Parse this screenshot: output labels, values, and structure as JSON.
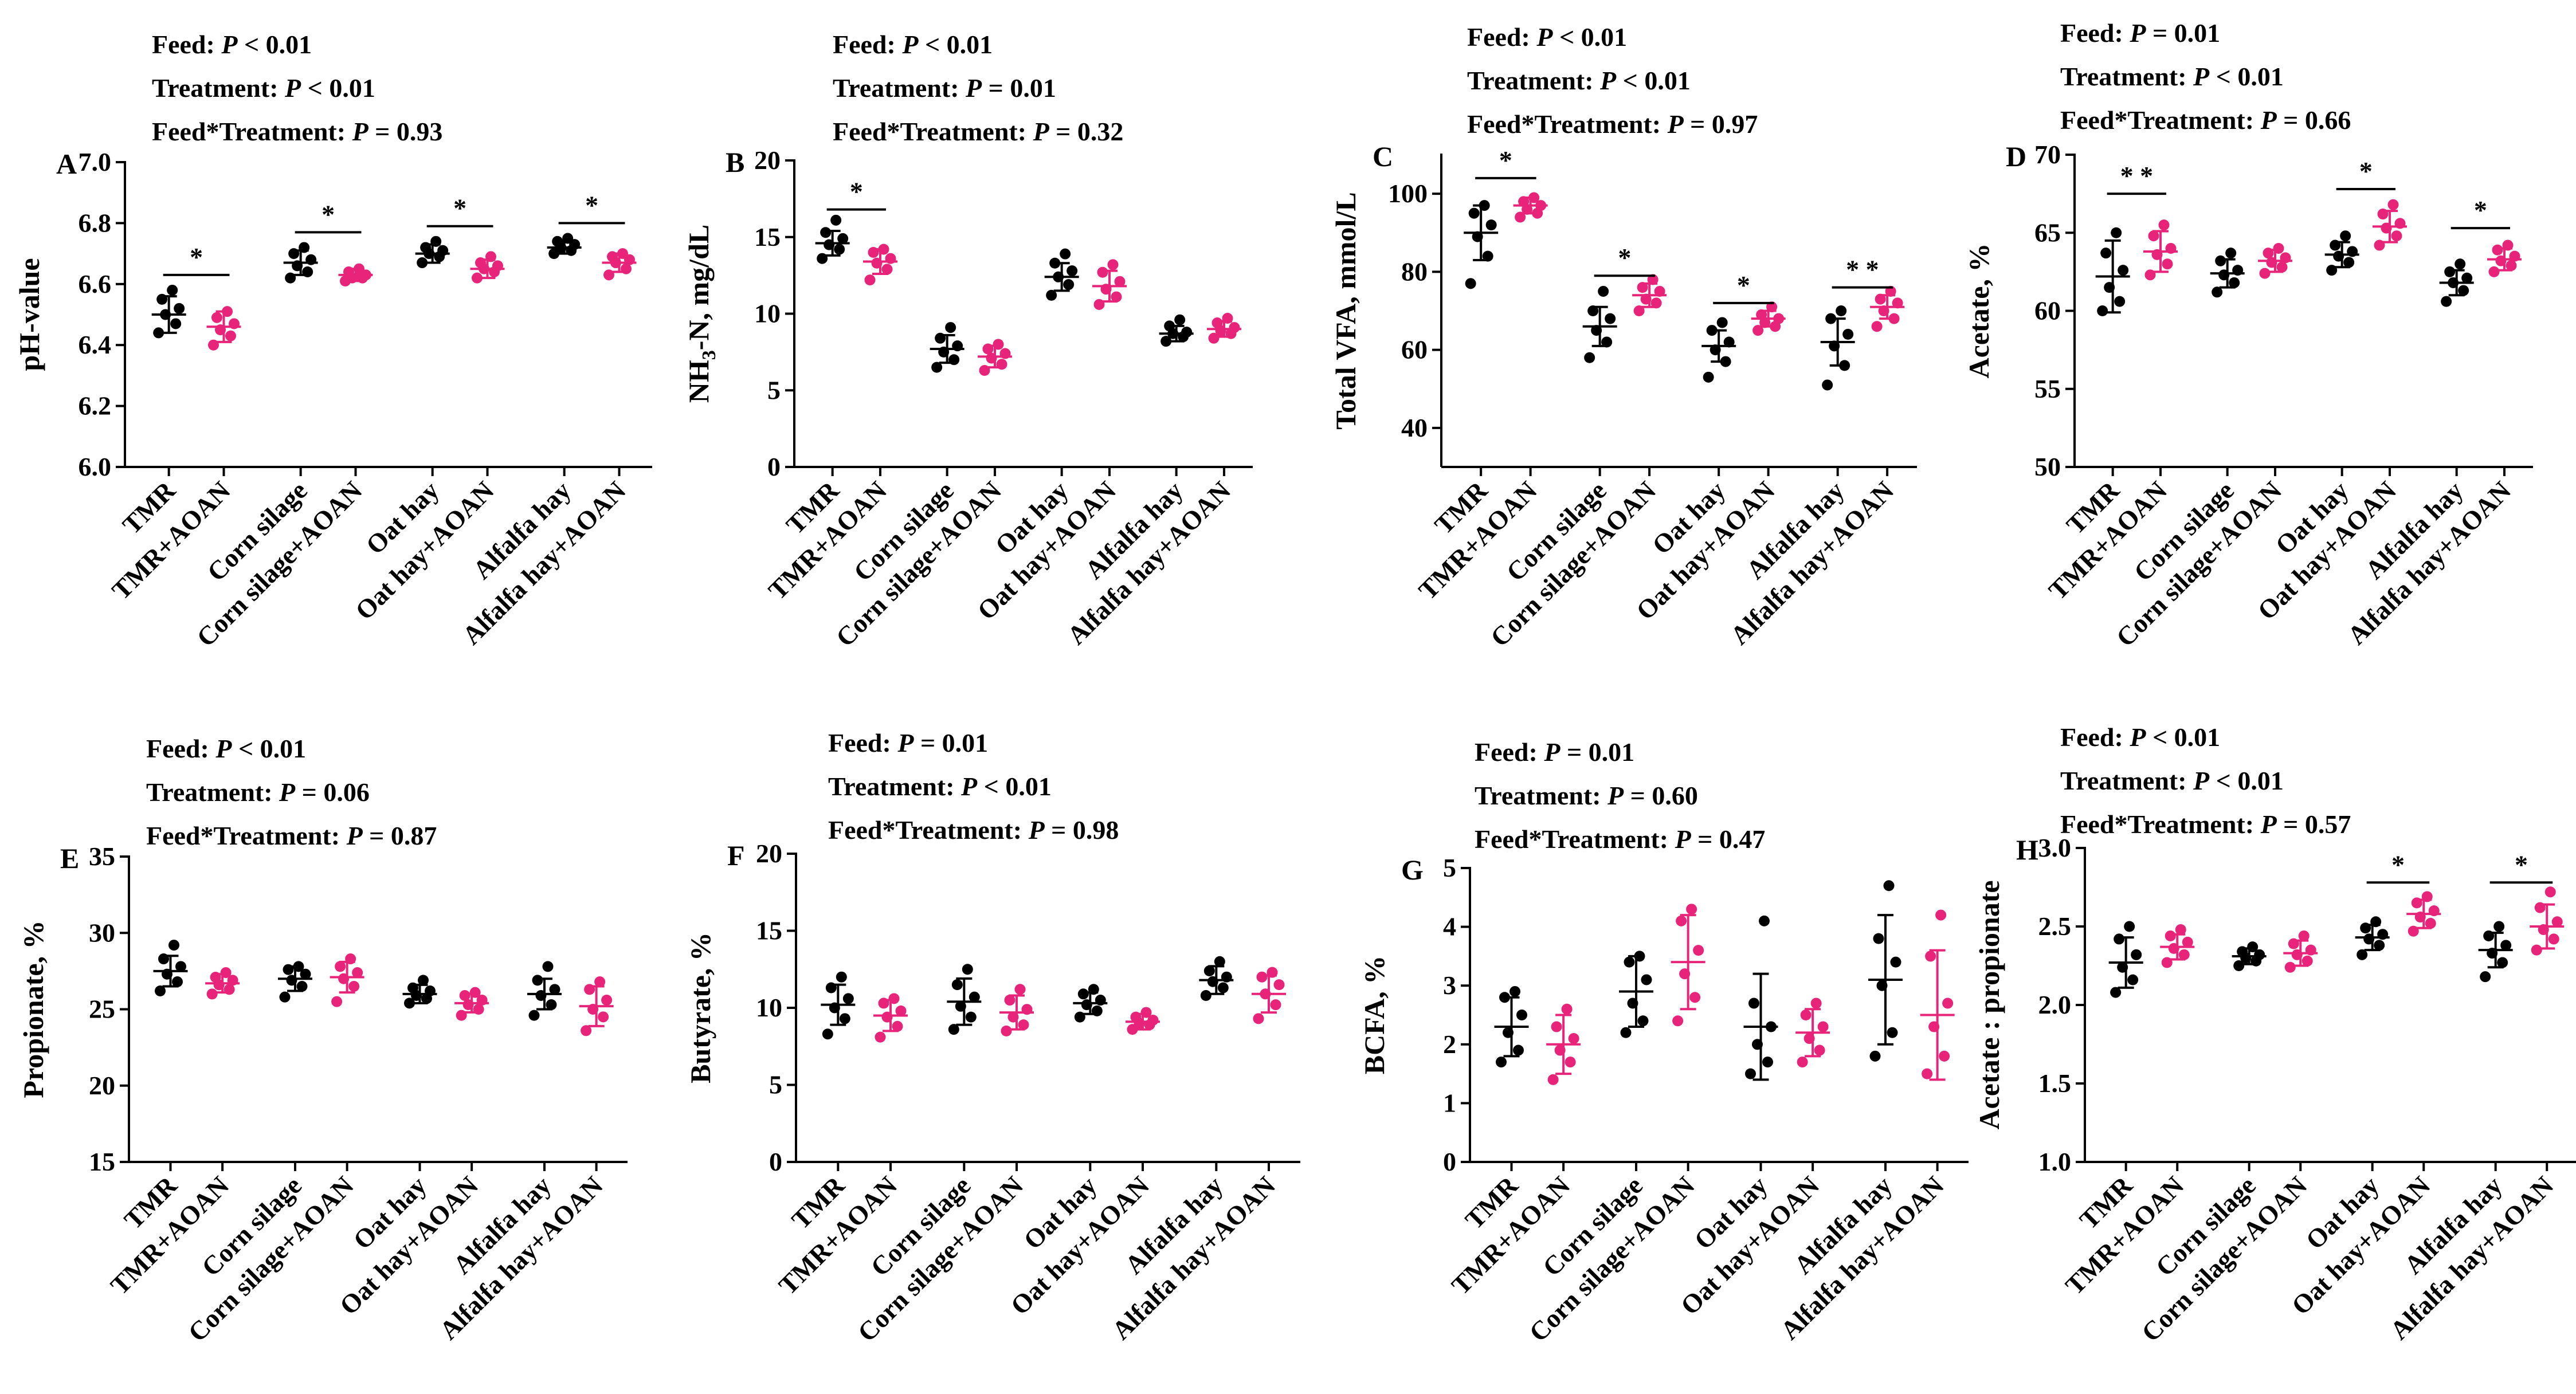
{
  "figure": {
    "categories": [
      "TMR",
      "TMR+AOAN",
      "Corn silage",
      "Corn silage+AOAN",
      "Oat hay",
      "Oat hay+AOAN",
      "Alfalfa hay",
      "Alfalfa hay+AOAN"
    ],
    "colors": {
      "control": "#000000",
      "aoan": "#e8247a"
    }
  },
  "chart_data": [
    {
      "panel": "A",
      "type": "scatter",
      "ylabel": "pH-value",
      "ylim": [
        6.0,
        7.0
      ],
      "yticks": [
        6.0,
        6.2,
        6.4,
        6.6,
        6.8,
        7.0
      ],
      "tick_decimals": 1,
      "stats": [
        {
          "label": "Feed: ",
          "p": "P",
          "rest": " < 0.01"
        },
        {
          "label": "Treatment: ",
          "p": "P",
          "rest": " < 0.01"
        },
        {
          "label": "Feed*Treatment: ",
          "p": "P",
          "rest": " = 0.93"
        }
      ],
      "groups": [
        {
          "mean": 6.5,
          "sd": 0.06,
          "points": [
            6.44,
            6.47,
            6.5,
            6.52,
            6.55,
            6.58
          ]
        },
        {
          "mean": 6.46,
          "sd": 0.05,
          "points": [
            6.4,
            6.43,
            6.45,
            6.47,
            6.49,
            6.51
          ]
        },
        {
          "mean": 6.67,
          "sd": 0.04,
          "points": [
            6.62,
            6.64,
            6.66,
            6.68,
            6.7,
            6.72
          ]
        },
        {
          "mean": 6.63,
          "sd": 0.02,
          "points": [
            6.61,
            6.62,
            6.62,
            6.63,
            6.64,
            6.65
          ]
        },
        {
          "mean": 6.7,
          "sd": 0.03,
          "points": [
            6.67,
            6.69,
            6.7,
            6.71,
            6.72,
            6.74
          ]
        },
        {
          "mean": 6.65,
          "sd": 0.03,
          "points": [
            6.62,
            6.64,
            6.65,
            6.66,
            6.67,
            6.69
          ]
        },
        {
          "mean": 6.72,
          "sd": 0.02,
          "points": [
            6.7,
            6.71,
            6.72,
            6.73,
            6.74,
            6.75
          ]
        },
        {
          "mean": 6.67,
          "sd": 0.03,
          "points": [
            6.63,
            6.65,
            6.67,
            6.68,
            6.69,
            6.7
          ]
        }
      ],
      "sig": [
        {
          "pair": 0,
          "label": "*",
          "y": 6.63
        },
        {
          "pair": 1,
          "label": "*",
          "y": 6.77
        },
        {
          "pair": 2,
          "label": "*",
          "y": 6.79
        },
        {
          "pair": 3,
          "label": "*",
          "y": 6.8
        }
      ]
    },
    {
      "panel": "B",
      "type": "scatter",
      "ylabel": "NH3-N, mg/dL",
      "ylim": [
        0,
        20
      ],
      "yticks": [
        0,
        5,
        10,
        15,
        20
      ],
      "tick_decimals": 0,
      "stats": [
        {
          "label": "Feed: ",
          "p": "P",
          "rest": " < 0.01"
        },
        {
          "label": "Treatment: ",
          "p": "P",
          "rest": " = 0.01"
        },
        {
          "label": "Feed*Treatment: ",
          "p": "P",
          "rest": " = 0.32"
        }
      ],
      "groups": [
        {
          "mean": 14.6,
          "sd": 0.8,
          "points": [
            13.6,
            14.2,
            14.5,
            14.9,
            15.3,
            16.1
          ]
        },
        {
          "mean": 13.4,
          "sd": 0.8,
          "points": [
            12.2,
            12.9,
            13.3,
            13.6,
            14.0,
            14.2
          ]
        },
        {
          "mean": 7.7,
          "sd": 0.9,
          "points": [
            6.5,
            7.0,
            7.5,
            7.9,
            8.4,
            9.1
          ]
        },
        {
          "mean": 7.2,
          "sd": 0.7,
          "points": [
            6.3,
            6.7,
            7.1,
            7.4,
            7.7,
            8.0
          ]
        },
        {
          "mean": 12.4,
          "sd": 0.9,
          "points": [
            11.2,
            11.9,
            12.4,
            12.8,
            13.3,
            13.9
          ]
        },
        {
          "mean": 11.8,
          "sd": 1.0,
          "points": [
            10.6,
            11.1,
            11.6,
            12.1,
            12.7,
            13.2
          ]
        },
        {
          "mean": 8.7,
          "sd": 0.5,
          "points": [
            8.2,
            8.5,
            8.7,
            8.8,
            9.2,
            9.6
          ]
        },
        {
          "mean": 9.0,
          "sd": 0.5,
          "points": [
            8.4,
            8.7,
            8.9,
            9.1,
            9.4,
            9.7
          ]
        }
      ],
      "sig": [
        {
          "pair": 0,
          "label": "*",
          "y": 16.8
        }
      ]
    },
    {
      "panel": "C",
      "type": "scatter",
      "ylabel": "Total VFA, mmol/L",
      "ylim": [
        30,
        110
      ],
      "yticks": [
        40,
        60,
        80,
        100
      ],
      "tick_decimals": 0,
      "stats": [
        {
          "label": "Feed: ",
          "p": "P",
          "rest": " < 0.01"
        },
        {
          "label": "Treatment: ",
          "p": "P",
          "rest": " < 0.01"
        },
        {
          "label": "Feed*Treatment: ",
          "p": "P",
          "rest": " = 0.97"
        }
      ],
      "groups": [
        {
          "mean": 90,
          "sd": 7,
          "points": [
            77,
            84,
            89,
            92,
            95,
            97
          ]
        },
        {
          "mean": 97,
          "sd": 2,
          "points": [
            94,
            95,
            96,
            97,
            98,
            99
          ]
        },
        {
          "mean": 66,
          "sd": 5,
          "points": [
            58,
            62,
            65,
            68,
            70,
            75
          ]
        },
        {
          "mean": 74,
          "sd": 3,
          "points": [
            70,
            72,
            73,
            75,
            76,
            78
          ]
        },
        {
          "mean": 61,
          "sd": 4,
          "points": [
            53,
            57,
            60,
            62,
            65,
            67
          ]
        },
        {
          "mean": 68,
          "sd": 2,
          "points": [
            65,
            66,
            67,
            68,
            69,
            71
          ]
        },
        {
          "mean": 62,
          "sd": 6,
          "points": [
            51,
            56,
            61,
            64,
            68,
            70
          ]
        },
        {
          "mean": 71,
          "sd": 3,
          "points": [
            66,
            68,
            70,
            72,
            73,
            75
          ]
        }
      ],
      "sig": [
        {
          "pair": 0,
          "label": "*",
          "y": 104
        },
        {
          "pair": 1,
          "label": "*",
          "y": 79
        },
        {
          "pair": 2,
          "label": "*",
          "y": 72
        },
        {
          "pair": 3,
          "label": "* *",
          "y": 76
        }
      ]
    },
    {
      "panel": "D",
      "type": "scatter",
      "ylabel": "Acetate, %",
      "ylim": [
        50,
        70
      ],
      "yticks": [
        50,
        55,
        60,
        65,
        70
      ],
      "tick_decimals": 0,
      "stats": [
        {
          "label": "Feed: ",
          "p": "P",
          "rest": " = 0.01"
        },
        {
          "label": "Treatment: ",
          "p": "P",
          "rest": " < 0.01"
        },
        {
          "label": "Feed*Treatment: ",
          "p": "P",
          "rest": " = 0.66"
        }
      ],
      "groups": [
        {
          "mean": 62.2,
          "sd": 2.3,
          "points": [
            60.0,
            60.6,
            61.5,
            62.6,
            63.7,
            65.0
          ]
        },
        {
          "mean": 63.8,
          "sd": 1.3,
          "points": [
            62.3,
            63.0,
            63.6,
            64.0,
            64.8,
            65.5
          ]
        },
        {
          "mean": 62.4,
          "sd": 0.9,
          "points": [
            61.2,
            61.8,
            62.3,
            62.6,
            63.2,
            63.7
          ]
        },
        {
          "mean": 63.2,
          "sd": 0.7,
          "points": [
            62.4,
            62.8,
            63.1,
            63.4,
            63.7,
            64.0
          ]
        },
        {
          "mean": 63.6,
          "sd": 0.8,
          "points": [
            62.6,
            63.1,
            63.5,
            63.8,
            64.2,
            64.8
          ]
        },
        {
          "mean": 65.4,
          "sd": 1.0,
          "points": [
            64.2,
            64.8,
            65.3,
            65.6,
            66.2,
            66.8
          ]
        },
        {
          "mean": 61.8,
          "sd": 0.8,
          "points": [
            60.6,
            61.3,
            61.8,
            62.1,
            62.5,
            63.0
          ]
        },
        {
          "mean": 63.3,
          "sd": 0.7,
          "points": [
            62.5,
            62.9,
            63.2,
            63.5,
            63.9,
            64.2
          ]
        }
      ],
      "sig": [
        {
          "pair": 0,
          "label": "* *",
          "y": 67.5
        },
        {
          "pair": 2,
          "label": "*",
          "y": 67.8
        },
        {
          "pair": 3,
          "label": "*",
          "y": 65.3
        }
      ]
    },
    {
      "panel": "E",
      "type": "scatter",
      "ylabel": "Propionate, %",
      "ylim": [
        15,
        35
      ],
      "yticks": [
        15,
        20,
        25,
        30,
        35
      ],
      "tick_decimals": 0,
      "stats": [
        {
          "label": "Feed: ",
          "p": "P",
          "rest": " < 0.01"
        },
        {
          "label": "Treatment: ",
          "p": "P",
          "rest": " = 0.06"
        },
        {
          "label": "Feed*Treatment: ",
          "p": "P",
          "rest": " = 0.87"
        }
      ],
      "groups": [
        {
          "mean": 27.5,
          "sd": 1.0,
          "points": [
            26.2,
            26.8,
            27.3,
            27.8,
            28.3,
            29.2
          ]
        },
        {
          "mean": 26.7,
          "sd": 0.6,
          "points": [
            26.0,
            26.3,
            26.6,
            26.9,
            27.1,
            27.4
          ]
        },
        {
          "mean": 27.0,
          "sd": 0.8,
          "points": [
            25.8,
            26.5,
            26.9,
            27.3,
            27.6,
            27.8
          ]
        },
        {
          "mean": 27.1,
          "sd": 1.0,
          "points": [
            25.5,
            26.5,
            27.0,
            27.4,
            27.8,
            28.3
          ]
        },
        {
          "mean": 26.0,
          "sd": 0.6,
          "points": [
            25.4,
            25.7,
            25.9,
            26.2,
            26.4,
            26.9
          ]
        },
        {
          "mean": 25.4,
          "sd": 0.6,
          "points": [
            24.6,
            25.0,
            25.3,
            25.6,
            25.9,
            26.1
          ]
        },
        {
          "mean": 26.0,
          "sd": 1.0,
          "points": [
            24.6,
            25.3,
            25.9,
            26.3,
            26.9,
            27.8
          ]
        },
        {
          "mean": 25.2,
          "sd": 1.3,
          "points": [
            23.6,
            24.5,
            25.0,
            25.6,
            26.3,
            26.8
          ]
        }
      ],
      "sig": []
    },
    {
      "panel": "F",
      "type": "scatter",
      "ylabel": "Butyrate, %",
      "ylim": [
        0,
        20
      ],
      "yticks": [
        0,
        5,
        10,
        15,
        20
      ],
      "tick_decimals": 0,
      "stats": [
        {
          "label": "Feed: ",
          "p": "P",
          "rest": " = 0.01"
        },
        {
          "label": "Treatment: ",
          "p": "P",
          "rest": " < 0.01"
        },
        {
          "label": "Feed*Treatment: ",
          "p": "P",
          "rest": " = 0.98"
        }
      ],
      "groups": [
        {
          "mean": 10.2,
          "sd": 1.3,
          "points": [
            8.3,
            9.3,
            10.0,
            10.6,
            11.3,
            12.0
          ]
        },
        {
          "mean": 9.5,
          "sd": 1.0,
          "points": [
            8.1,
            8.8,
            9.4,
            9.8,
            10.3,
            10.6
          ]
        },
        {
          "mean": 10.4,
          "sd": 1.5,
          "points": [
            8.6,
            9.4,
            10.1,
            10.7,
            11.5,
            12.5
          ]
        },
        {
          "mean": 9.7,
          "sd": 1.1,
          "points": [
            8.5,
            8.9,
            9.4,
            9.9,
            10.5,
            11.2
          ]
        },
        {
          "mean": 10.3,
          "sd": 0.7,
          "points": [
            9.4,
            9.8,
            10.2,
            10.5,
            10.9,
            11.2
          ]
        },
        {
          "mean": 9.1,
          "sd": 0.5,
          "points": [
            8.6,
            8.9,
            9.0,
            9.2,
            9.4,
            9.7
          ]
        },
        {
          "mean": 11.8,
          "sd": 0.9,
          "points": [
            10.8,
            11.3,
            11.7,
            12.0,
            12.4,
            13.0
          ]
        },
        {
          "mean": 10.9,
          "sd": 1.2,
          "points": [
            9.3,
            10.2,
            10.9,
            11.5,
            12.0,
            12.3
          ]
        }
      ],
      "sig": []
    },
    {
      "panel": "G",
      "type": "scatter",
      "ylabel": "BCFA, %",
      "ylim": [
        0,
        5
      ],
      "yticks": [
        0,
        1,
        2,
        3,
        4,
        5
      ],
      "tick_decimals": 0,
      "stats": [
        {
          "label": "Feed: ",
          "p": "P",
          "rest": " = 0.01"
        },
        {
          "label": "Treatment: ",
          "p": "P",
          "rest": " = 0.60"
        },
        {
          "label": "Feed*Treatment: ",
          "p": "P",
          "rest": " = 0.47"
        }
      ],
      "groups": [
        {
          "mean": 2.3,
          "sd": 0.5,
          "points": [
            1.7,
            1.9,
            2.2,
            2.5,
            2.8,
            2.9
          ]
        },
        {
          "mean": 2.0,
          "sd": 0.5,
          "points": [
            1.4,
            1.7,
            1.9,
            2.1,
            2.3,
            2.6
          ]
        },
        {
          "mean": 2.9,
          "sd": 0.6,
          "points": [
            2.2,
            2.4,
            2.7,
            3.1,
            3.4,
            3.5
          ]
        },
        {
          "mean": 3.4,
          "sd": 0.8,
          "points": [
            2.4,
            2.8,
            3.2,
            3.6,
            4.1,
            4.3
          ]
        },
        {
          "mean": 2.3,
          "sd": 0.9,
          "points": [
            1.5,
            1.7,
            2.0,
            2.3,
            2.7,
            4.1
          ]
        },
        {
          "mean": 2.2,
          "sd": 0.4,
          "points": [
            1.7,
            1.9,
            2.1,
            2.3,
            2.5,
            2.7
          ]
        },
        {
          "mean": 3.1,
          "sd": 1.1,
          "points": [
            1.8,
            2.2,
            3.0,
            3.4,
            3.8,
            4.7
          ]
        },
        {
          "mean": 2.5,
          "sd": 1.1,
          "points": [
            1.5,
            1.8,
            2.3,
            2.7,
            3.5,
            4.2
          ]
        }
      ],
      "sig": []
    },
    {
      "panel": "H",
      "type": "scatter",
      "ylabel": "Acetate : propionate",
      "ylim": [
        1.0,
        3.0
      ],
      "yticks": [
        1.0,
        1.5,
        2.0,
        2.5,
        3.0
      ],
      "tick_decimals": 1,
      "stats": [
        {
          "label": "Feed: ",
          "p": "P",
          "rest": " < 0.01"
        },
        {
          "label": "Treatment: ",
          "p": "P",
          "rest": " < 0.01"
        },
        {
          "label": "Feed*Treatment: ",
          "p": "P",
          "rest": " = 0.57"
        }
      ],
      "groups": [
        {
          "mean": 2.27,
          "sd": 0.16,
          "points": [
            2.08,
            2.16,
            2.24,
            2.32,
            2.42,
            2.5
          ]
        },
        {
          "mean": 2.37,
          "sd": 0.08,
          "points": [
            2.27,
            2.32,
            2.36,
            2.4,
            2.44,
            2.48
          ]
        },
        {
          "mean": 2.31,
          "sd": 0.05,
          "points": [
            2.25,
            2.28,
            2.3,
            2.32,
            2.34,
            2.37
          ]
        },
        {
          "mean": 2.33,
          "sd": 0.08,
          "points": [
            2.24,
            2.28,
            2.32,
            2.35,
            2.39,
            2.44
          ]
        },
        {
          "mean": 2.43,
          "sd": 0.08,
          "points": [
            2.32,
            2.38,
            2.42,
            2.45,
            2.49,
            2.53
          ]
        },
        {
          "mean": 2.58,
          "sd": 0.09,
          "points": [
            2.47,
            2.52,
            2.56,
            2.6,
            2.65,
            2.69
          ]
        },
        {
          "mean": 2.35,
          "sd": 0.11,
          "points": [
            2.18,
            2.27,
            2.33,
            2.38,
            2.44,
            2.5
          ]
        },
        {
          "mean": 2.5,
          "sd": 0.14,
          "points": [
            2.35,
            2.42,
            2.48,
            2.53,
            2.62,
            2.72
          ]
        }
      ],
      "sig": [
        {
          "pair": 2,
          "label": "*",
          "y": 2.78
        },
        {
          "pair": 3,
          "label": "*",
          "y": 2.78
        }
      ]
    }
  ]
}
